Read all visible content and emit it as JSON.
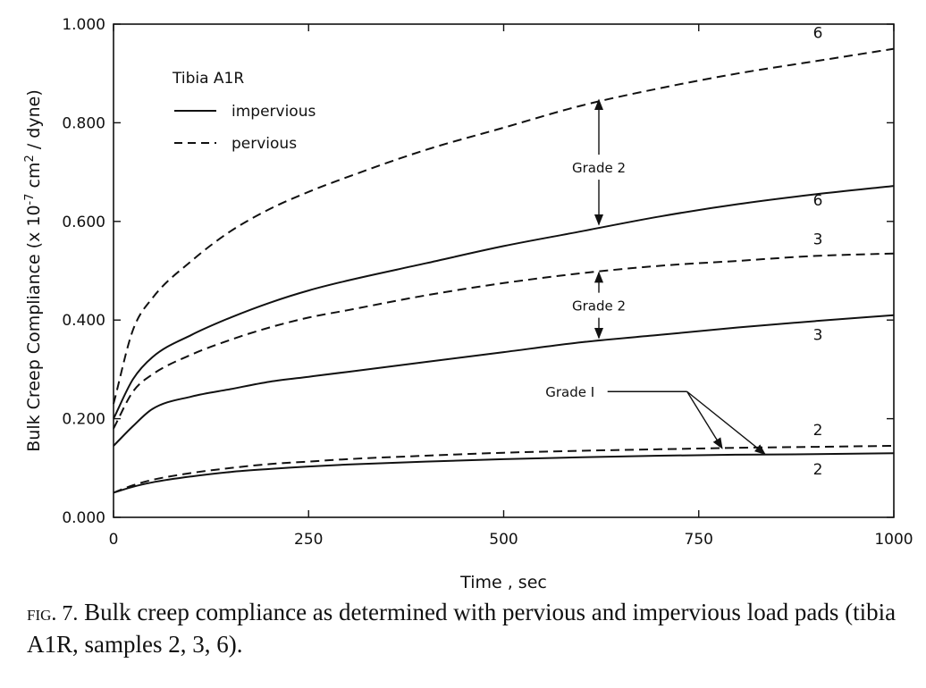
{
  "chart_data": {
    "type": "line",
    "title": "",
    "xlabel": "Time , sec",
    "ylabel_parts": [
      "Bulk Creep Compliance  (x 10",
      "-7",
      " cm",
      "2",
      " / dyne)"
    ],
    "xlim": [
      0,
      1000
    ],
    "ylim": [
      0,
      1.0
    ],
    "x_ticks": [
      0,
      250,
      500,
      750,
      1000
    ],
    "x_tick_labels": [
      "0",
      "250",
      "500",
      "750",
      "1000"
    ],
    "y_ticks": [
      0,
      0.2,
      0.4,
      0.6,
      0.8,
      1.0
    ],
    "y_tick_labels": [
      "0.000",
      "0.200",
      "0.400",
      "0.600",
      "0.800",
      "1.000"
    ],
    "grid": false,
    "legend": {
      "title": "Tibia  A1R",
      "placement": "top-left",
      "entries": [
        {
          "label": "impervious",
          "style": "solid"
        },
        {
          "label": "pervious",
          "style": "dashed"
        }
      ]
    },
    "x": [
      0,
      25,
      50,
      100,
      150,
      200,
      250,
      300,
      400,
      500,
      600,
      700,
      800,
      900,
      1000
    ],
    "series": [
      {
        "label": "6",
        "style": "dashed",
        "values": [
          0.23,
          0.38,
          0.445,
          0.52,
          0.58,
          0.625,
          0.66,
          0.69,
          0.745,
          0.79,
          0.835,
          0.87,
          0.9,
          0.925,
          0.95
        ]
      },
      {
        "label": "6",
        "style": "solid",
        "values": [
          0.2,
          0.28,
          0.325,
          0.37,
          0.405,
          0.435,
          0.46,
          0.48,
          0.515,
          0.55,
          0.58,
          0.61,
          0.635,
          0.655,
          0.672
        ]
      },
      {
        "label": "3",
        "style": "dashed",
        "values": [
          0.18,
          0.255,
          0.29,
          0.33,
          0.36,
          0.385,
          0.405,
          0.42,
          0.45,
          0.475,
          0.495,
          0.51,
          0.52,
          0.53,
          0.535
        ]
      },
      {
        "label": "3",
        "style": "solid",
        "values": [
          0.145,
          0.185,
          0.22,
          0.245,
          0.26,
          0.275,
          0.285,
          0.295,
          0.315,
          0.335,
          0.355,
          0.37,
          0.385,
          0.398,
          0.41
        ]
      },
      {
        "label": "2",
        "style": "dashed",
        "values": [
          0.05,
          0.065,
          0.076,
          0.09,
          0.1,
          0.108,
          0.113,
          0.118,
          0.125,
          0.131,
          0.135,
          0.138,
          0.141,
          0.143,
          0.145
        ]
      },
      {
        "label": "2",
        "style": "solid",
        "values": [
          0.05,
          0.062,
          0.071,
          0.083,
          0.092,
          0.098,
          0.103,
          0.107,
          0.113,
          0.118,
          0.122,
          0.125,
          0.127,
          0.128,
          0.13
        ]
      }
    ],
    "annotations": [
      {
        "text": "Grade 2",
        "type": "double-arrow",
        "x": 622,
        "y_from": 0.59,
        "y_to": 0.85,
        "label_y": 0.71
      },
      {
        "text": "Grade 2",
        "type": "double-arrow",
        "x": 622,
        "y_from": 0.36,
        "y_to": 0.5,
        "label_y": 0.43
      },
      {
        "text": "Grade I",
        "type": "pointer",
        "label_x": 585,
        "label_y": 0.255,
        "corner_x": 735,
        "corner_y": 0.255,
        "targets": [
          [
            780,
            0.14
          ],
          [
            835,
            0.128
          ]
        ]
      }
    ]
  },
  "caption": {
    "fig": "fig. 7.",
    "text": " Bulk creep compliance as determined with pervious and impervious load pads (tibia A1R, samples 2, 3, 6)."
  }
}
